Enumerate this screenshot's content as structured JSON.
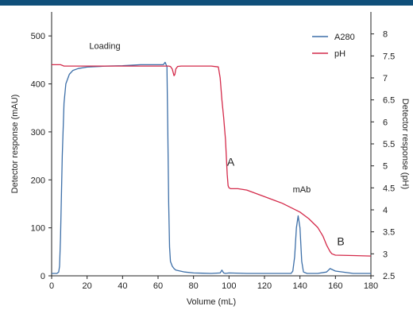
{
  "chart_data": {
    "type": "line",
    "xlabel": "Volume (mL)",
    "ylabel_left": "Detector response (mAU)",
    "ylabel_right": "Detector response (pH)",
    "xlim": [
      0,
      180
    ],
    "ylim_left": [
      0,
      550
    ],
    "ylim_right": [
      2.5,
      8.5
    ],
    "x_ticks": [
      0,
      20,
      40,
      60,
      80,
      100,
      120,
      140,
      160,
      180
    ],
    "y_ticks_left": [
      0,
      100,
      200,
      300,
      400,
      500
    ],
    "y_ticks_right": [
      2.5,
      3,
      3.5,
      4,
      4.5,
      5,
      5.5,
      6,
      6.5,
      7,
      7.5,
      8
    ],
    "grid": false,
    "legend_position": "top-right",
    "series": [
      {
        "name": "A280",
        "axis": "left",
        "color": "#3d6fa8",
        "x": [
          0,
          3,
          4,
          4.5,
          5,
          6,
          7,
          8,
          10,
          12,
          15,
          20,
          30,
          40,
          50,
          60,
          63,
          64,
          65,
          65.5,
          66,
          66.5,
          67,
          68,
          69,
          70,
          75,
          80,
          90,
          95,
          96,
          97,
          98,
          100,
          110,
          120,
          130,
          135,
          136,
          137,
          138,
          139,
          140,
          141,
          142,
          144,
          150,
          155,
          157,
          160,
          170,
          180
        ],
        "y": [
          5,
          5,
          8,
          20,
          80,
          250,
          360,
          400,
          420,
          428,
          432,
          435,
          437,
          438,
          440,
          440,
          440,
          445,
          436,
          300,
          150,
          60,
          30,
          20,
          15,
          12,
          8,
          6,
          5,
          6,
          12,
          6,
          5,
          6,
          5,
          5,
          5,
          5,
          10,
          40,
          100,
          125,
          100,
          30,
          8,
          5,
          5,
          8,
          15,
          10,
          5,
          5
        ]
      },
      {
        "name": "pH",
        "axis": "right",
        "color": "#d42a4a",
        "x": [
          0,
          5,
          7,
          10,
          20,
          40,
          60,
          66,
          67,
          68,
          69,
          69.5,
          70,
          71,
          73,
          80,
          90,
          94,
          95,
          96,
          97,
          98,
          98.5,
          99,
          99.5,
          100,
          101,
          102,
          105,
          110,
          120,
          130,
          140,
          145,
          150,
          153,
          155,
          157,
          158,
          160,
          170,
          180
        ],
        "y": [
          7.3,
          7.3,
          7.27,
          7.27,
          7.27,
          7.27,
          7.27,
          7.27,
          7.26,
          7.2,
          7.05,
          7.08,
          7.2,
          7.26,
          7.27,
          7.27,
          7.27,
          7.25,
          7.0,
          6.5,
          6.1,
          5.6,
          5.2,
          4.8,
          4.55,
          4.5,
          4.48,
          4.48,
          4.48,
          4.45,
          4.3,
          4.15,
          3.95,
          3.8,
          3.6,
          3.4,
          3.2,
          3.05,
          3.0,
          2.97,
          2.96,
          2.95
        ]
      }
    ],
    "annotations": [
      {
        "text": "Loading",
        "x": 30,
        "y": 473,
        "axis": "left"
      },
      {
        "text": "A",
        "x": 101,
        "y": 5.0,
        "axis": "right"
      },
      {
        "text": "mAb",
        "x": 141,
        "y": 4.4,
        "axis": "right"
      },
      {
        "text": "B",
        "x": 163,
        "y": 3.2,
        "axis": "right"
      }
    ]
  }
}
